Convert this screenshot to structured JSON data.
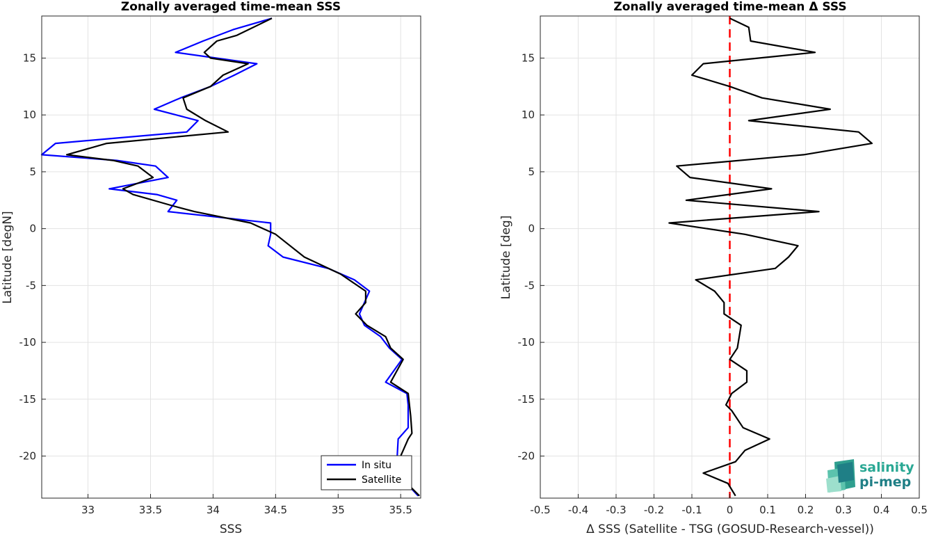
{
  "chart_data": [
    {
      "type": "line",
      "title": "Zonally averaged time-mean SSS",
      "xlabel": "SSS",
      "ylabel": "Latitude [degN]",
      "xlim": [
        32.63,
        35.66
      ],
      "ylim": [
        -23.7,
        18.7
      ],
      "xticks": [
        "33",
        "33.5",
        "34",
        "34.5",
        "35",
        "35.5"
      ],
      "yticks": [
        "15",
        "10",
        "5",
        "0",
        "-5",
        "-10",
        "-15",
        "-20"
      ],
      "grid": true,
      "legend": {
        "position": "bottom-right",
        "entries": [
          "In situ",
          "Satellite"
        ]
      },
      "series": [
        {
          "name": "In situ",
          "color": "#0000ff",
          "points": [
            [
              34.47,
              18.5
            ],
            [
              34.16,
              17.5
            ],
            [
              33.92,
              16.5
            ],
            [
              33.7,
              15.5
            ],
            [
              34.35,
              14.5
            ],
            [
              34.17,
              13.5
            ],
            [
              33.98,
              12.5
            ],
            [
              33.74,
              11.5
            ],
            [
              33.53,
              10.5
            ],
            [
              33.88,
              9.5
            ],
            [
              33.79,
              8.5
            ],
            [
              32.74,
              7.5
            ],
            [
              32.63,
              6.5
            ],
            [
              33.23,
              6.0
            ],
            [
              33.54,
              5.5
            ],
            [
              33.64,
              4.5
            ],
            [
              33.17,
              3.5
            ],
            [
              33.55,
              3.0
            ],
            [
              33.71,
              2.5
            ],
            [
              33.64,
              1.5
            ],
            [
              34.46,
              0.5
            ],
            [
              34.46,
              -0.5
            ],
            [
              34.44,
              -1.5
            ],
            [
              34.56,
              -2.5
            ],
            [
              34.92,
              -3.5
            ],
            [
              35.13,
              -4.5
            ],
            [
              35.25,
              -5.5
            ],
            [
              35.21,
              -6.5
            ],
            [
              35.17,
              -7.5
            ],
            [
              35.21,
              -8.5
            ],
            [
              35.34,
              -9.5
            ],
            [
              35.41,
              -10.5
            ],
            [
              35.51,
              -11.5
            ],
            [
              35.38,
              -13.5
            ],
            [
              35.55,
              -14.5
            ],
            [
              35.56,
              -15.5
            ],
            [
              35.56,
              -17.5
            ],
            [
              35.48,
              -18.5
            ],
            [
              35.47,
              -20.5
            ],
            [
              35.53,
              -22.2
            ],
            [
              35.64,
              -23.5
            ]
          ]
        },
        {
          "name": "Satellite",
          "color": "#000000",
          "points": [
            [
              34.47,
              18.5
            ],
            [
              34.19,
              17.0
            ],
            [
              34.03,
              16.5
            ],
            [
              33.93,
              15.5
            ],
            [
              33.98,
              15.0
            ],
            [
              34.28,
              14.5
            ],
            [
              34.08,
              13.5
            ],
            [
              33.98,
              12.5
            ],
            [
              33.76,
              11.5
            ],
            [
              33.79,
              10.5
            ],
            [
              33.94,
              9.5
            ],
            [
              34.12,
              8.5
            ],
            [
              33.15,
              7.5
            ],
            [
              32.83,
              6.5
            ],
            [
              33.2,
              6.0
            ],
            [
              33.4,
              5.5
            ],
            [
              33.52,
              4.5
            ],
            [
              33.28,
              3.5
            ],
            [
              33.36,
              3.0
            ],
            [
              33.68,
              2.0
            ],
            [
              33.85,
              1.5
            ],
            [
              34.3,
              0.5
            ],
            [
              34.5,
              -0.5
            ],
            [
              34.73,
              -2.5
            ],
            [
              35.02,
              -4.0
            ],
            [
              35.22,
              -5.5
            ],
            [
              35.22,
              -6.5
            ],
            [
              35.14,
              -7.5
            ],
            [
              35.23,
              -8.5
            ],
            [
              35.38,
              -9.5
            ],
            [
              35.42,
              -10.5
            ],
            [
              35.52,
              -11.5
            ],
            [
              35.42,
              -13.5
            ],
            [
              35.56,
              -14.5
            ],
            [
              35.58,
              -16.5
            ],
            [
              35.59,
              -18.0
            ],
            [
              35.56,
              -18.5
            ],
            [
              35.48,
              -20.5
            ],
            [
              35.52,
              -21.5
            ],
            [
              35.55,
              -22.4
            ],
            [
              35.65,
              -23.5
            ]
          ]
        }
      ]
    },
    {
      "type": "line",
      "title": "Zonally averaged time-mean Δ SSS",
      "xlabel": "Δ SSS (Satellite - TSG (GOSUD-Research-vessel))",
      "ylabel": "Latitude [deg]",
      "xlim": [
        -0.5,
        0.5
      ],
      "ylim": [
        -23.7,
        18.7
      ],
      "xticks": [
        "-0.5",
        "-0.4",
        "-0.3",
        "-0.2",
        "-0.1",
        "0",
        "0.1",
        "0.2",
        "0.3",
        "0.4",
        "0.5"
      ],
      "yticks": [
        "15",
        "10",
        "5",
        "0",
        "-5",
        "-10",
        "-15",
        "-20"
      ],
      "grid": true,
      "reference_line": {
        "x": 0,
        "color": "#ff0000",
        "style": "dashed"
      },
      "series": [
        {
          "color": "#000000",
          "points": [
            [
              0.0,
              18.5
            ],
            [
              0.05,
              17.7
            ],
            [
              0.055,
              16.5
            ],
            [
              0.225,
              15.5
            ],
            [
              -0.07,
              14.5
            ],
            [
              -0.1,
              13.5
            ],
            [
              0.0,
              12.5
            ],
            [
              0.085,
              11.5
            ],
            [
              0.265,
              10.5
            ],
            [
              0.05,
              9.5
            ],
            [
              0.34,
              8.5
            ],
            [
              0.375,
              7.5
            ],
            [
              0.195,
              6.5
            ],
            [
              -0.14,
              5.5
            ],
            [
              -0.105,
              4.5
            ],
            [
              0.11,
              3.5
            ],
            [
              -0.115,
              2.5
            ],
            [
              0.235,
              1.5
            ],
            [
              -0.16,
              0.5
            ],
            [
              0.04,
              -0.5
            ],
            [
              0.18,
              -1.5
            ],
            [
              0.155,
              -2.5
            ],
            [
              0.12,
              -3.5
            ],
            [
              -0.09,
              -4.5
            ],
            [
              -0.04,
              -5.5
            ],
            [
              -0.015,
              -6.5
            ],
            [
              -0.015,
              -7.5
            ],
            [
              0.03,
              -8.5
            ],
            [
              0.025,
              -9.5
            ],
            [
              0.02,
              -10.5
            ],
            [
              0.0,
              -11.5
            ],
            [
              0.045,
              -12.5
            ],
            [
              0.045,
              -13.5
            ],
            [
              0.005,
              -14.5
            ],
            [
              -0.01,
              -15.5
            ],
            [
              0.005,
              -16.0
            ],
            [
              0.035,
              -17.5
            ],
            [
              0.105,
              -18.5
            ],
            [
              0.04,
              -19.5
            ],
            [
              0.015,
              -20.5
            ],
            [
              -0.07,
              -21.5
            ],
            [
              -0.005,
              -22.4
            ],
            [
              0.015,
              -23.5
            ]
          ]
        }
      ]
    }
  ],
  "logo": {
    "line1": "salinity",
    "line2": "pi-mep"
  }
}
